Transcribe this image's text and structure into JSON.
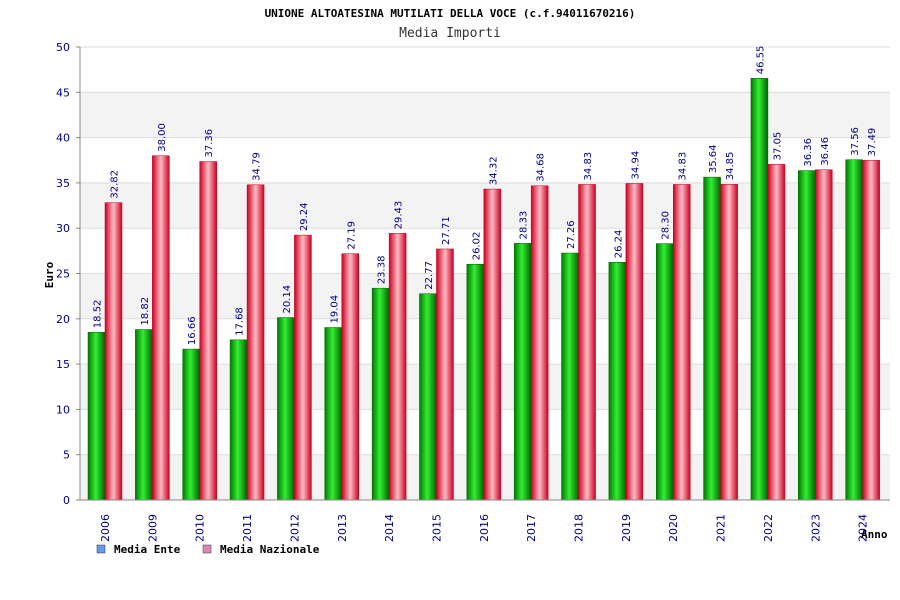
{
  "chart_data": {
    "type": "bar",
    "title": "UNIONE ALTOATESINA MUTILATI DELLA VOCE (c.f.94011670216)",
    "subtitle": "Media Importi",
    "ylabel": "Euro",
    "xlabel": "Anno",
    "ylim": [
      0,
      50
    ],
    "yticks": [
      0,
      5,
      10,
      15,
      20,
      25,
      30,
      35,
      40,
      45,
      50
    ],
    "grid": true,
    "legend_position": "bottom-left",
    "categories": [
      "2006",
      "2009",
      "2010",
      "2011",
      "2012",
      "2013",
      "2014",
      "2015",
      "2016",
      "2017",
      "2018",
      "2019",
      "2020",
      "2021",
      "2022",
      "2023",
      "2024"
    ],
    "series": [
      {
        "name": "Media Ente",
        "values": [
          18.52,
          18.82,
          16.66,
          17.68,
          20.14,
          19.04,
          23.38,
          22.77,
          26.02,
          28.33,
          27.26,
          26.24,
          28.3,
          35.64,
          46.55,
          36.36,
          37.56
        ],
        "labels": [
          "18.52",
          "18.82",
          "16.66",
          "17.68",
          "20.14",
          "19.04",
          "23.38",
          "22.77",
          "26.02",
          "28.33",
          "27.26",
          "26.24",
          "28.30",
          "35.64",
          "46.55",
          "36.36",
          "37.56"
        ],
        "color": "#00b000",
        "legend_color": "#6699ee"
      },
      {
        "name": "Media Nazionale",
        "values": [
          32.82,
          38.0,
          37.36,
          34.79,
          29.24,
          27.19,
          29.43,
          27.71,
          34.32,
          34.68,
          34.83,
          34.94,
          34.83,
          34.85,
          37.05,
          36.46,
          37.49
        ],
        "labels": [
          "32.82",
          "38.00",
          "37.36",
          "34.79",
          "29.24",
          "27.19",
          "29.43",
          "27.71",
          "34.32",
          "34.68",
          "34.83",
          "34.94",
          "34.83",
          "34.85",
          "37.05",
          "36.46",
          "37.49"
        ],
        "color": "#ee1133",
        "legend_color": "#dd88bb"
      }
    ]
  }
}
